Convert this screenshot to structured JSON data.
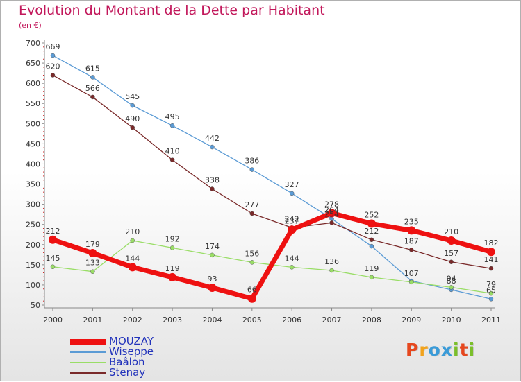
{
  "title": "Evolution du Montant de la Dette par Habitant",
  "unit": "(en €)",
  "logo": {
    "text": "Proxiti",
    "letter_colors": [
      "#e6471e",
      "#f2a31c",
      "#3a9bd8",
      "#3a9bd8",
      "#7bbf2a",
      "#e6471e",
      "#7bbf2a"
    ]
  },
  "chart_data": {
    "type": "line",
    "x": [
      "2000",
      "2001",
      "2002",
      "2003",
      "2004",
      "2005",
      "2006",
      "2007",
      "2008",
      "2009",
      "2010",
      "2011"
    ],
    "ylim": [
      50,
      700
    ],
    "yticks": [
      50,
      100,
      150,
      200,
      250,
      300,
      350,
      400,
      450,
      500,
      550,
      600,
      650,
      700
    ],
    "grid": false,
    "legend_position": "bottom-left",
    "series": [
      {
        "name": "MOUZAY",
        "values": [
          212,
          179,
          144,
          119,
          93,
          66,
          237,
          278,
          252,
          235,
          210,
          182
        ],
        "color": "#ee1111",
        "bold": true
      },
      {
        "name": "Wiseppe",
        "values": [
          669,
          615,
          545,
          495,
          442,
          386,
          327,
          264,
          196,
          110,
          88,
          65
        ],
        "color": "#5b9bd5",
        "bold": false
      },
      {
        "name": "Baâlon",
        "values": [
          145,
          133,
          210,
          192,
          174,
          156,
          144,
          136,
          119,
          107,
          94,
          79
        ],
        "color": "#99dd66",
        "bold": false
      },
      {
        "name": "Stenay",
        "values": [
          620,
          566,
          490,
          410,
          338,
          277,
          242,
          254,
          212,
          187,
          157,
          141
        ],
        "color": "#7a2a2a",
        "bold": false
      }
    ],
    "data_labels": [
      [
        "212",
        "179",
        "144",
        "119",
        "93",
        "66",
        "237",
        "278",
        "252",
        "235",
        "210",
        "182"
      ],
      [
        "669",
        "615",
        "545",
        "495",
        "442",
        "386",
        "327",
        "264",
        "",
        "",
        "88",
        "65"
      ],
      [
        "145",
        "133",
        "210",
        "192",
        "174",
        "156",
        "144",
        "136",
        "119",
        "107",
        "94",
        "79"
      ],
      [
        "620",
        "566",
        "490",
        "410",
        "338",
        "277",
        "242",
        "254",
        "212",
        "187",
        "157",
        "141"
      ]
    ]
  }
}
